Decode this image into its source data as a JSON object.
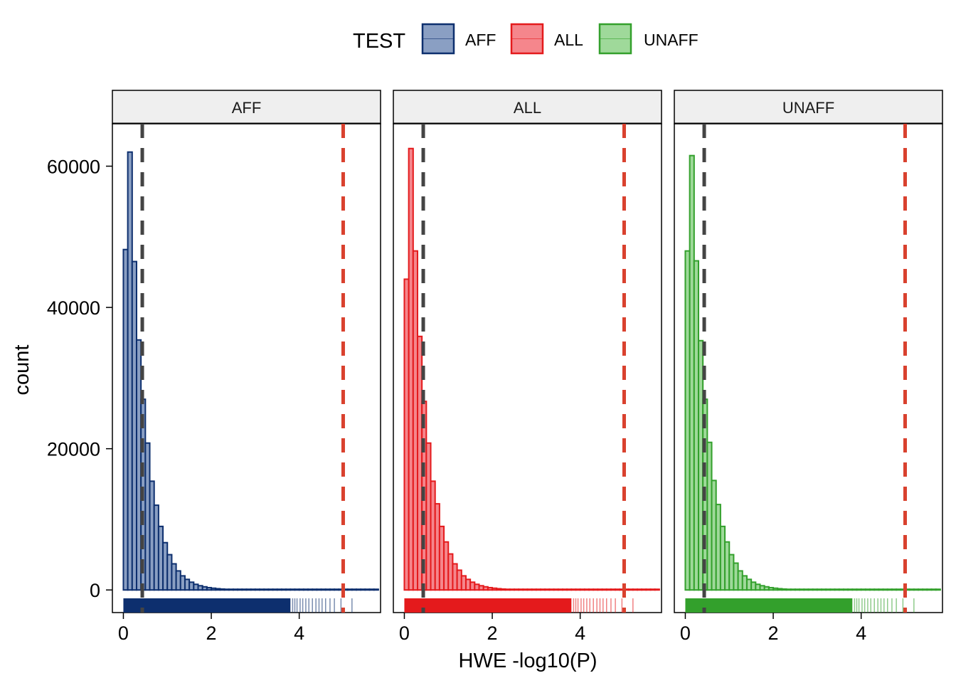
{
  "chart_data": {
    "type": "histogram",
    "xlabel": "HWE -log10(P)",
    "ylabel": "count",
    "xlim": [
      -0.25,
      5.85
    ],
    "ylim": [
      -3200,
      66000
    ],
    "x_ticks": [
      0,
      2,
      4
    ],
    "y_ticks": [
      0,
      20000,
      40000,
      60000
    ],
    "x_tick_labels": [
      "0",
      "2",
      "4"
    ],
    "y_tick_labels": [
      "0",
      "20000",
      "40000",
      "60000"
    ],
    "bin_width": 0.1,
    "legend": {
      "title": "TEST",
      "position": "top",
      "entries": [
        "AFF",
        "ALL",
        "UNAFF"
      ]
    },
    "reference_lines": [
      {
        "x": 0.43,
        "color": "#444444",
        "style": "dashed"
      },
      {
        "x": 5.0,
        "color": "#d9412e",
        "style": "dashed"
      }
    ],
    "rug": true,
    "grid": false,
    "panels": [
      {
        "name": "AFF",
        "fill": "#8a9fc3",
        "stroke": "#0d2f6e",
        "rug_color": "#0d2f6e",
        "bins_start": 0.0,
        "counts": [
          48200,
          62000,
          46500,
          35400,
          27000,
          20800,
          15400,
          12000,
          9000,
          6700,
          5000,
          3700,
          2700,
          2000,
          1500,
          1100,
          800,
          600,
          450,
          330,
          250,
          180,
          130,
          100,
          75,
          55,
          40,
          30,
          22,
          16,
          12,
          9,
          7,
          5,
          4,
          3,
          2,
          2,
          1,
          1,
          1,
          1,
          1,
          0,
          0,
          0,
          0,
          1,
          0,
          0,
          0,
          0,
          0,
          0,
          0,
          0,
          0,
          1
        ]
      },
      {
        "name": "ALL",
        "fill": "#f5868c",
        "stroke": "#e41a1c",
        "rug_color": "#e41a1c",
        "bins_start": 0.0,
        "counts": [
          44000,
          62500,
          48000,
          35900,
          26700,
          20800,
          15400,
          12200,
          9000,
          6800,
          5100,
          3700,
          2800,
          2000,
          1500,
          1100,
          800,
          600,
          450,
          330,
          250,
          180,
          130,
          100,
          75,
          55,
          40,
          30,
          22,
          16,
          12,
          9,
          7,
          5,
          4,
          3,
          2,
          2,
          1,
          1,
          1,
          1,
          1,
          0,
          0,
          0,
          0,
          1,
          0,
          0,
          0,
          0,
          0,
          0,
          0,
          1,
          0,
          1
        ]
      },
      {
        "name": "UNAFF",
        "fill": "#9fd99a",
        "stroke": "#33a02c",
        "rug_color": "#33a02c",
        "bins_start": 0.0,
        "counts": [
          48000,
          61500,
          46600,
          35300,
          27000,
          20900,
          15500,
          12100,
          9000,
          6800,
          5000,
          3800,
          2700,
          2000,
          1500,
          1100,
          800,
          600,
          450,
          330,
          250,
          180,
          130,
          100,
          75,
          55,
          40,
          30,
          22,
          16,
          12,
          9,
          7,
          5,
          4,
          3,
          2,
          2,
          1,
          1,
          1,
          1,
          1,
          0,
          0,
          0,
          0,
          1,
          0,
          0,
          0,
          0,
          0,
          0,
          0,
          0,
          0,
          1
        ]
      }
    ]
  }
}
